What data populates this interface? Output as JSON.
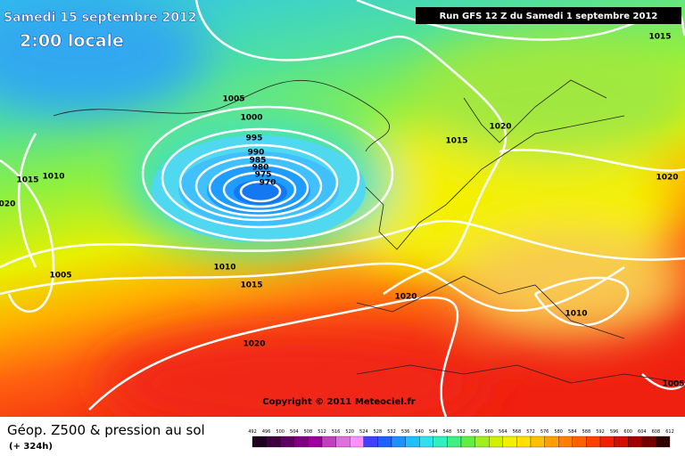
{
  "header": {
    "date": "Samedi 15 septembre 2012",
    "time": "2:00 locale",
    "run": "Run GFS 12 Z du Samedi 1 septembre 2012"
  },
  "isobars": [
    "1015",
    "1005",
    "1000",
    "995",
    "990",
    "985",
    "980",
    "975",
    "970",
    "1015",
    "1020",
    "1020",
    "1010",
    "1015",
    "020",
    "1005",
    "1010",
    "1015",
    "1020",
    "1010",
    "1020",
    "1005"
  ],
  "copyright": "Copyright © 2011 Meteociel.fr",
  "footer": {
    "title": "Géop. Z500 & pression au sol",
    "lead": "(+ 324h)",
    "scale": [
      492,
      496,
      500,
      504,
      508,
      512,
      516,
      520,
      524,
      528,
      532,
      536,
      540,
      544,
      548,
      552,
      556,
      560,
      564,
      568,
      572,
      576,
      580,
      584,
      588,
      592,
      596,
      600,
      604,
      608,
      612
    ]
  }
}
